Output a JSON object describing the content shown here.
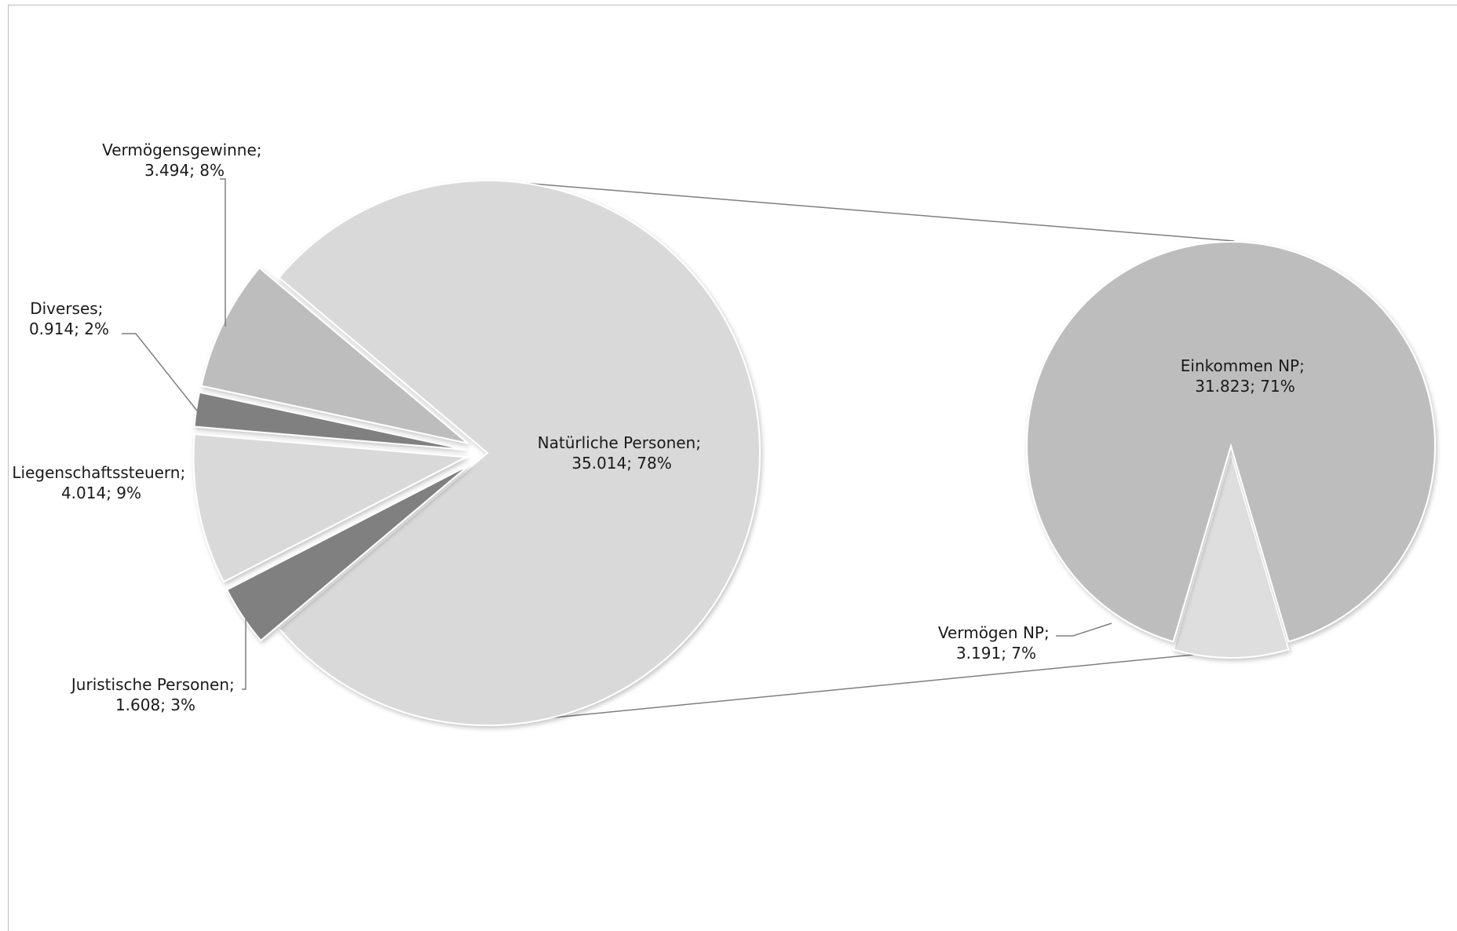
{
  "chart_data": {
    "type": "pie",
    "variant": "pie-of-pie",
    "main_pie": {
      "slices": [
        {
          "name": "Natürliche Personen",
          "value": 35.014,
          "percent": 78,
          "label_line1": "Natürliche Personen;",
          "label_line2": "35.014; 78%",
          "color": "#d9d9d9",
          "exploded": false
        },
        {
          "name": "Juristische Personen",
          "value": 1.608,
          "percent": 3,
          "label_line1": "Juristische Personen;",
          "label_line2": "1.608; 3%",
          "color": "#808080",
          "exploded": true
        },
        {
          "name": "Liegenschaftssteuern",
          "value": 4.014,
          "percent": 9,
          "label_line1": "Liegenschaftssteuern;",
          "label_line2": "4.014; 9%",
          "color": "#d9d9d9",
          "exploded": true
        },
        {
          "name": "Diverses",
          "value": 0.914,
          "percent": 2,
          "label_line1": "Diverses;",
          "label_line2": "0.914; 2%",
          "color": "#808080",
          "exploded": true
        },
        {
          "name": "Vermögensgewinne",
          "value": 3.494,
          "percent": 8,
          "label_line1": "Vermögensgewinne;",
          "label_line2": "3.494; 8%",
          "color": "#bdbdbd",
          "exploded": true
        }
      ]
    },
    "secondary_pie": {
      "breakdown_of": "Natürliche Personen",
      "slices": [
        {
          "name": "Einkommen NP",
          "value": 31.823,
          "percent": 71,
          "label_line1": "Einkommen NP;",
          "label_line2": "31.823; 71%",
          "color": "#bdbdbd"
        },
        {
          "name": "Vermögen NP",
          "value": 3.191,
          "percent": 7,
          "label_line1": "Vermögen NP;",
          "label_line2": "3.191; 7%",
          "color": "#dedede"
        }
      ]
    },
    "legend": "none"
  }
}
